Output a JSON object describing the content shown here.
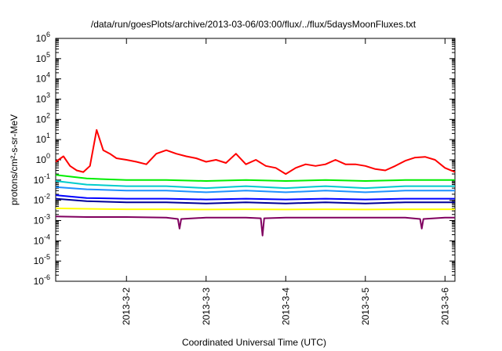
{
  "chart_data": {
    "type": "line",
    "title": "/data/run/goesPlots/archive/2013-03-06/03:00/flux/../flux/5daysMoonFluxes.txt",
    "xlabel": "Coordinated Universal Time (UTC)",
    "ylabel": "protons/cm²-s-sr-MeV",
    "x_range": [
      "2013-03-01T02:40",
      "2013-03-06T03:00"
    ],
    "x_ticks": [
      {
        "x": "2013-03-02",
        "label": "2013-3-2"
      },
      {
        "x": "2013-03-03",
        "label": "2013-3-3"
      },
      {
        "x": "2013-03-04",
        "label": "2013-3-4"
      },
      {
        "x": "2013-03-05",
        "label": "2013-3-5"
      },
      {
        "x": "2013-03-06",
        "label": "2013-3-6"
      }
    ],
    "y_scale": "log",
    "y_range": [
      1e-06,
      1000000.0
    ],
    "y_ticks": [
      {
        "value": 1000000.0,
        "mant": "10",
        "exp": "6"
      },
      {
        "value": 100000.0,
        "mant": "10",
        "exp": "5"
      },
      {
        "value": 10000.0,
        "mant": "10",
        "exp": "4"
      },
      {
        "value": 1000.0,
        "mant": "10",
        "exp": "3"
      },
      {
        "value": 100.0,
        "mant": "10",
        "exp": "2"
      },
      {
        "value": 10.0,
        "mant": "10",
        "exp": "1"
      },
      {
        "value": 1.0,
        "mant": "10",
        "exp": "0"
      },
      {
        "value": 0.1,
        "mant": "10",
        "exp": "-1"
      },
      {
        "value": 0.01,
        "mant": "10",
        "exp": "-2"
      },
      {
        "value": 0.001,
        "mant": "10",
        "exp": "-3"
      },
      {
        "value": 0.0001,
        "mant": "10",
        "exp": "-4"
      },
      {
        "value": 1e-05,
        "mant": "10",
        "exp": "-5"
      },
      {
        "value": 1e-06,
        "mant": "10",
        "exp": "-6"
      }
    ],
    "grid": false,
    "legend": "none",
    "series": [
      {
        "color": "#ff0000",
        "x": [
          "2013-03-01T02:40",
          "2013-03-01T05:00",
          "2013-03-01T07:00",
          "2013-03-01T09:00",
          "2013-03-01T11:00",
          "2013-03-01T13:00",
          "2013-03-01T15:00",
          "2013-03-01T17:00",
          "2013-03-01T19:00",
          "2013-03-01T21:00",
          "2013-03-02T00:00",
          "2013-03-02T03:00",
          "2013-03-02T06:00",
          "2013-03-02T09:00",
          "2013-03-02T12:00",
          "2013-03-02T15:00",
          "2013-03-02T18:00",
          "2013-03-02T21:00",
          "2013-03-03T00:00",
          "2013-03-03T03:00",
          "2013-03-03T06:00",
          "2013-03-03T09:00",
          "2013-03-03T12:00",
          "2013-03-03T15:00",
          "2013-03-03T18:00",
          "2013-03-03T21:00",
          "2013-03-04T00:00",
          "2013-03-04T03:00",
          "2013-03-04T06:00",
          "2013-03-04T09:00",
          "2013-03-04T12:00",
          "2013-03-04T15:00",
          "2013-03-04T18:00",
          "2013-03-04T21:00",
          "2013-03-05T00:00",
          "2013-03-05T03:00",
          "2013-03-05T06:00",
          "2013-03-05T09:00",
          "2013-03-05T12:00",
          "2013-03-05T15:00",
          "2013-03-05T18:00",
          "2013-03-05T21:00",
          "2013-03-06T00:00",
          "2013-03-06T03:00"
        ],
        "values": [
          0.8,
          1.5,
          0.5,
          0.3,
          0.25,
          0.5,
          30,
          3,
          2,
          1.2,
          1.0,
          0.8,
          0.6,
          2,
          3,
          2,
          1.5,
          1.2,
          0.8,
          1.0,
          0.7,
          2.0,
          0.6,
          1.0,
          0.5,
          0.4,
          0.2,
          0.4,
          0.6,
          0.5,
          0.6,
          1.0,
          0.6,
          0.6,
          0.5,
          0.35,
          0.3,
          0.5,
          0.9,
          1.3,
          1.4,
          1.0,
          0.4,
          0.25
        ]
      },
      {
        "color": "#00ee00",
        "x": [
          "2013-03-01T02:40",
          "2013-03-01T12:00",
          "2013-03-02T00:00",
          "2013-03-02T12:00",
          "2013-03-03T00:00",
          "2013-03-03T12:00",
          "2013-03-04T00:00",
          "2013-03-04T12:00",
          "2013-03-05T00:00",
          "2013-03-05T12:00",
          "2013-03-06T00:00",
          "2013-03-06T03:00"
        ],
        "values": [
          0.18,
          0.12,
          0.1,
          0.1,
          0.09,
          0.1,
          0.09,
          0.1,
          0.09,
          0.1,
          0.1,
          0.1
        ]
      },
      {
        "color": "#00cccc",
        "x": [
          "2013-03-01T02:40",
          "2013-03-01T12:00",
          "2013-03-02T00:00",
          "2013-03-02T12:00",
          "2013-03-03T00:00",
          "2013-03-03T12:00",
          "2013-03-04T00:00",
          "2013-03-04T12:00",
          "2013-03-05T00:00",
          "2013-03-05T12:00",
          "2013-03-06T00:00",
          "2013-03-06T03:00"
        ],
        "values": [
          0.09,
          0.06,
          0.05,
          0.05,
          0.04,
          0.05,
          0.04,
          0.05,
          0.04,
          0.05,
          0.05,
          0.05
        ]
      },
      {
        "color": "#1e90ff",
        "x": [
          "2013-03-01T02:40",
          "2013-03-01T12:00",
          "2013-03-02T00:00",
          "2013-03-02T12:00",
          "2013-03-03T00:00",
          "2013-03-03T12:00",
          "2013-03-04T00:00",
          "2013-03-04T12:00",
          "2013-03-05T00:00",
          "2013-03-05T12:00",
          "2013-03-06T00:00",
          "2013-03-06T03:00"
        ],
        "values": [
          0.045,
          0.035,
          0.03,
          0.03,
          0.025,
          0.03,
          0.025,
          0.03,
          0.025,
          0.03,
          0.03,
          0.03
        ]
      },
      {
        "color": "#0000ff",
        "x": [
          "2013-03-01T02:40",
          "2013-03-01T12:00",
          "2013-03-02T00:00",
          "2013-03-02T12:00",
          "2013-03-03T00:00",
          "2013-03-03T12:00",
          "2013-03-04T00:00",
          "2013-03-04T12:00",
          "2013-03-05T00:00",
          "2013-03-05T12:00",
          "2013-03-06T00:00",
          "2013-03-06T03:00"
        ],
        "values": [
          0.018,
          0.013,
          0.012,
          0.012,
          0.011,
          0.012,
          0.011,
          0.012,
          0.011,
          0.012,
          0.012,
          0.012
        ]
      },
      {
        "color": "#000099",
        "x": [
          "2013-03-01T02:40",
          "2013-03-01T12:00",
          "2013-03-02T00:00",
          "2013-03-02T12:00",
          "2013-03-03T00:00",
          "2013-03-03T12:00",
          "2013-03-04T00:00",
          "2013-03-04T12:00",
          "2013-03-05T00:00",
          "2013-03-05T12:00",
          "2013-03-06T00:00",
          "2013-03-06T03:00"
        ],
        "values": [
          0.012,
          0.009,
          0.008,
          0.008,
          0.007,
          0.008,
          0.007,
          0.008,
          0.007,
          0.008,
          0.008,
          0.008
        ]
      },
      {
        "color": "#ffff00",
        "x": [
          "2013-03-01T02:40",
          "2013-03-01T12:00",
          "2013-03-02T00:00",
          "2013-03-02T12:00",
          "2013-03-03T00:00",
          "2013-03-03T12:00",
          "2013-03-04T00:00",
          "2013-03-04T12:00",
          "2013-03-05T00:00",
          "2013-03-05T12:00",
          "2013-03-06T00:00",
          "2013-03-06T03:00"
        ],
        "values": [
          0.004,
          0.0038,
          0.0036,
          0.0036,
          0.0035,
          0.0036,
          0.0035,
          0.0036,
          0.0035,
          0.0036,
          0.0036,
          0.0036
        ]
      },
      {
        "color": "#800060",
        "x": [
          "2013-03-01T02:40",
          "2013-03-01T12:00",
          "2013-03-02T00:00",
          "2013-03-02T12:00",
          "2013-03-02T15:30",
          "2013-03-02T16:00",
          "2013-03-02T16:30",
          "2013-03-03T00:00",
          "2013-03-03T12:00",
          "2013-03-03T16:30",
          "2013-03-03T17:00",
          "2013-03-03T17:30",
          "2013-03-04T00:00",
          "2013-03-04T12:00",
          "2013-03-05T00:00",
          "2013-03-05T12:00",
          "2013-03-05T16:30",
          "2013-03-05T17:00",
          "2013-03-05T17:30",
          "2013-03-06T00:00",
          "2013-03-06T03:00"
        ],
        "values": [
          0.0016,
          0.0015,
          0.0015,
          0.0014,
          0.0012,
          0.0004,
          0.0012,
          0.0014,
          0.0014,
          0.0013,
          0.00018,
          0.0013,
          0.0014,
          0.0014,
          0.0014,
          0.0014,
          0.0012,
          0.0004,
          0.0012,
          0.0014,
          0.0014
        ]
      }
    ]
  }
}
